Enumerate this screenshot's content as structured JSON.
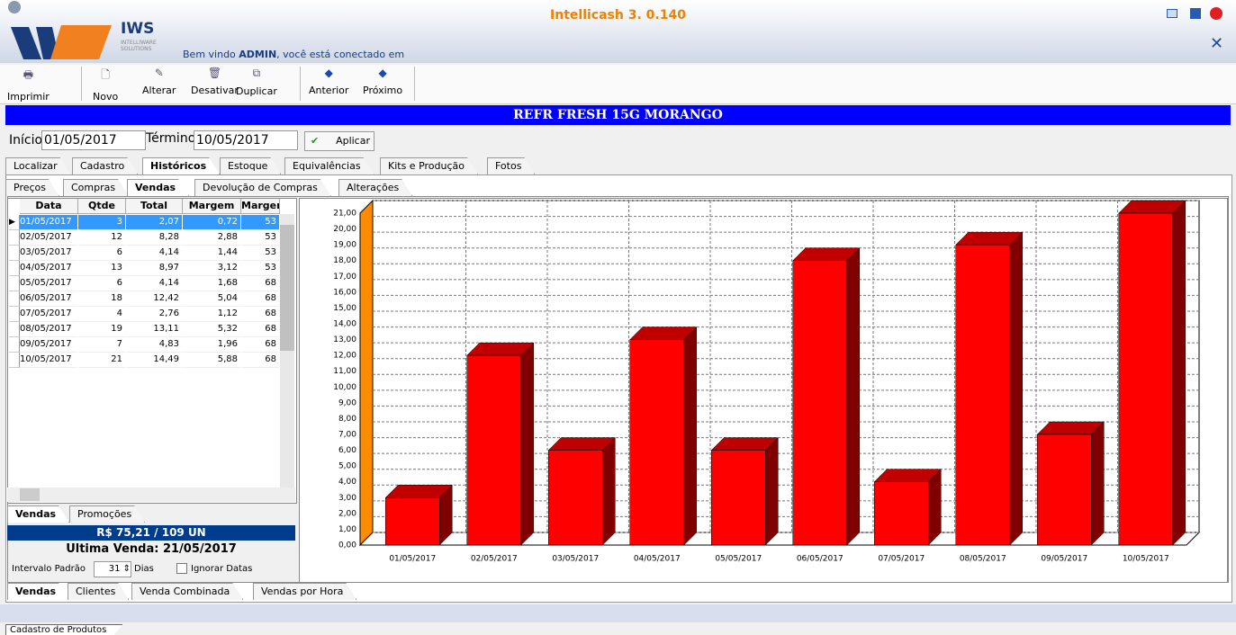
{
  "window": {
    "logo_text": "IWS",
    "logo_sub": "INTELLIWARE SOLUTIONS",
    "welcome": "Bem vindo",
    "user": "ADMIN",
    "welcome_rest": ", você está conectado em",
    "title": "Intellicash 3. 0.140"
  },
  "toolbar": [
    "Imprimir",
    "Novo",
    "Alterar",
    "Desativar",
    "Duplicar",
    "Anterior",
    "Próximo"
  ],
  "product_title": "REFR FRESH 15G MORANGO",
  "filter": {
    "start_label": "Início",
    "start": "01/05/2017",
    "end_label": "Término",
    "end": "10/05/2017",
    "apply": "Aplicar"
  },
  "tabs": [
    "Localizar",
    "Cadastro",
    "Históricos",
    "Estoque",
    "Equivalências",
    "Kits e Produção",
    "Fotos"
  ],
  "subtabs": [
    "Preços",
    "Compras",
    "Vendas",
    "Devolução de Compras",
    "Alterações"
  ],
  "table": {
    "columns": [
      "Data",
      "Qtde",
      "Total",
      "Margem",
      "Marger"
    ],
    "rows": [
      [
        "01/05/2017",
        "3",
        "2,07",
        "0,72",
        "53"
      ],
      [
        "02/05/2017",
        "12",
        "8,28",
        "2,88",
        "53"
      ],
      [
        "03/05/2017",
        "6",
        "4,14",
        "1,44",
        "53"
      ],
      [
        "04/05/2017",
        "13",
        "8,97",
        "3,12",
        "53"
      ],
      [
        "05/05/2017",
        "6",
        "4,14",
        "1,68",
        "68"
      ],
      [
        "06/05/2017",
        "18",
        "12,42",
        "5,04",
        "68"
      ],
      [
        "07/05/2017",
        "4",
        "2,76",
        "1,12",
        "68"
      ],
      [
        "08/05/2017",
        "19",
        "13,11",
        "5,32",
        "68"
      ],
      [
        "09/05/2017",
        "7",
        "4,83",
        "1,96",
        "68"
      ],
      [
        "10/05/2017",
        "21",
        "14,49",
        "5,88",
        "68"
      ]
    ]
  },
  "left_tabs": [
    "Vendas",
    "Promoções"
  ],
  "summary": {
    "total": "R$ 75,21 / 109 UN",
    "last_sale": "Ultima Venda: 21/05/2017",
    "interval_label": "Intervalo Padrão",
    "interval": "31",
    "days": "Dias",
    "ignore": "Ignorar Datas"
  },
  "bottom_tabs": [
    "Vendas",
    "Clientes",
    "Venda Combinada",
    "Vendas por Hora"
  ],
  "status_tab": "Cadastro de Produtos",
  "chart_data": {
    "type": "bar3d",
    "color": "#ff0000",
    "side_color": "#800000",
    "top_color": "#c00000",
    "wall_color": "#ff8c00",
    "grid": true,
    "categories": [
      "01/05/2017",
      "02/05/2017",
      "03/05/2017",
      "04/05/2017",
      "05/05/2017",
      "06/05/2017",
      "07/05/2017",
      "08/05/2017",
      "09/05/2017",
      "10/05/2017"
    ],
    "values": [
      3,
      12,
      6,
      13,
      6,
      18,
      4,
      19,
      7,
      21
    ],
    "ylim": [
      0,
      21
    ],
    "yticks": [
      {
        "value": 0,
        "label": "0,00"
      },
      {
        "value": 1,
        "label": "1,00"
      },
      {
        "value": 2,
        "label": "2,00"
      },
      {
        "value": 3,
        "label": "3,00"
      },
      {
        "value": 4,
        "label": "4,00"
      },
      {
        "value": 5,
        "label": "5,00"
      },
      {
        "value": 6,
        "label": "6,00"
      },
      {
        "value": 7,
        "label": "7,00"
      },
      {
        "value": 8,
        "label": "8,00"
      },
      {
        "value": 9,
        "label": "9,00"
      },
      {
        "value": 10,
        "label": "10,00"
      },
      {
        "value": 11,
        "label": "11,00"
      },
      {
        "value": 12,
        "label": "12,00"
      },
      {
        "value": 13,
        "label": "13,00"
      },
      {
        "value": 14,
        "label": "14,00"
      },
      {
        "value": 15,
        "label": "15,00"
      },
      {
        "value": 16,
        "label": "16,00"
      },
      {
        "value": 17,
        "label": "17,00"
      },
      {
        "value": 18,
        "label": "18,00"
      },
      {
        "value": 19,
        "label": "19,00"
      },
      {
        "value": 20,
        "label": "20,00"
      },
      {
        "value": 21,
        "label": "21,00"
      }
    ]
  }
}
